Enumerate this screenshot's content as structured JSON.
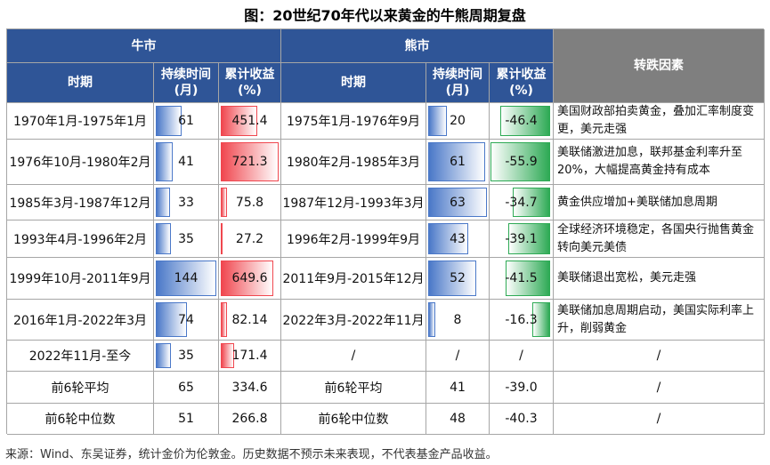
{
  "title": "图：20世纪70年代以来黄金的牛熊周期复盘",
  "header": {
    "bull": "牛市",
    "bear": "熊市",
    "factor": "转跌因素",
    "bull_columns": [
      [
        "时期"
      ],
      [
        "持续时间",
        "(月)"
      ],
      [
        "累计收益",
        "(%)"
      ]
    ],
    "bear_columns": [
      [
        "时期"
      ],
      [
        "持续时间",
        "(月)"
      ],
      [
        "累计收益",
        "(%)"
      ]
    ]
  },
  "colors": {
    "header": "#2f5597",
    "factor_header": "#7f7f7f",
    "duration": "#4a78c8",
    "gain": "#f0474f",
    "loss": "#2eaa55"
  },
  "table": {
    "rows": [
      [
        "1970年1月-1975年1月",
        61,
        451.4,
        "1975年1月-1976年9月",
        20,
        -46.4,
        "美国财政部拍卖黄金，叠加汇率制度变更，美元走强"
      ],
      [
        "1976年10月-1980年2月",
        41,
        721.3,
        "1980年2月-1985年3月",
        61,
        -55.9,
        "美联储激进加息，联邦基金利率升至20%，大幅提高黄金持有成本"
      ],
      [
        "1985年3月-1987年12月",
        33,
        75.8,
        "1987年12月-1993年3月",
        63,
        -34.7,
        "黄金供应增加+美联储加息周期"
      ],
      [
        "1993年4月-1996年2月",
        35,
        27.2,
        "1996年2月-1999年9月",
        43,
        -39.1,
        "全球经济环境稳定，各国央行抛售黄金转向美元美债"
      ],
      [
        "1999年10月-2011年9月",
        144,
        649.6,
        "2011年9月-2015年12月",
        52,
        -41.5,
        "美联储退出宽松，美元走强"
      ],
      [
        "2016年1月-2022年3月",
        74,
        82.14,
        "2022年3月-2022年11月",
        8,
        -16.3,
        "美联储加息周期启动，美国实际利率上升，削弱黄金"
      ],
      [
        "2022年11月-至今",
        35,
        171.4,
        "/",
        "/",
        "/",
        "/"
      ]
    ],
    "summary": [
      [
        "前6轮平均",
        65,
        334.6,
        "前6轮平均",
        41,
        "-39.0",
        "/"
      ],
      [
        "前6轮中位数",
        51,
        266.8,
        "前6轮中位数",
        48,
        -40.3,
        "/"
      ]
    ]
  },
  "source": "来源：Wind、东吴证券，统计金价为伦敦金。历史数据不预示未来表现，不代表基金产品收益。"
}
